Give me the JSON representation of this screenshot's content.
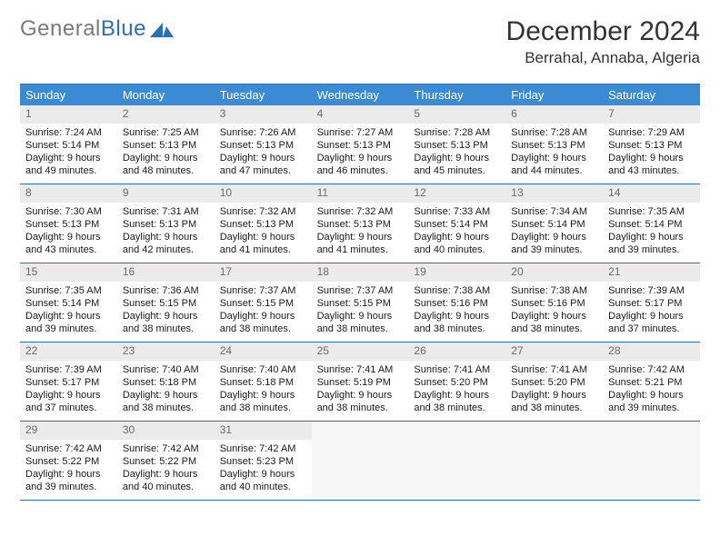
{
  "brand": {
    "part1": "General",
    "part2": "Blue"
  },
  "title": "December 2024",
  "location": "Berrahal, Annaba, Algeria",
  "colors": {
    "header_bg": "#3b8bd4",
    "rule": "#2d6fb5",
    "daynum_bg": "#ebebeb",
    "logo_gray": "#7a7a7a",
    "logo_blue": "#2d6fb5"
  },
  "day_labels": [
    "Sunday",
    "Monday",
    "Tuesday",
    "Wednesday",
    "Thursday",
    "Friday",
    "Saturday"
  ],
  "weeks": [
    [
      {
        "n": "1",
        "sunrise": "7:24 AM",
        "sunset": "5:14 PM",
        "daylight": "9 hours and 49 minutes."
      },
      {
        "n": "2",
        "sunrise": "7:25 AM",
        "sunset": "5:13 PM",
        "daylight": "9 hours and 48 minutes."
      },
      {
        "n": "3",
        "sunrise": "7:26 AM",
        "sunset": "5:13 PM",
        "daylight": "9 hours and 47 minutes."
      },
      {
        "n": "4",
        "sunrise": "7:27 AM",
        "sunset": "5:13 PM",
        "daylight": "9 hours and 46 minutes."
      },
      {
        "n": "5",
        "sunrise": "7:28 AM",
        "sunset": "5:13 PM",
        "daylight": "9 hours and 45 minutes."
      },
      {
        "n": "6",
        "sunrise": "7:28 AM",
        "sunset": "5:13 PM",
        "daylight": "9 hours and 44 minutes."
      },
      {
        "n": "7",
        "sunrise": "7:29 AM",
        "sunset": "5:13 PM",
        "daylight": "9 hours and 43 minutes."
      }
    ],
    [
      {
        "n": "8",
        "sunrise": "7:30 AM",
        "sunset": "5:13 PM",
        "daylight": "9 hours and 43 minutes."
      },
      {
        "n": "9",
        "sunrise": "7:31 AM",
        "sunset": "5:13 PM",
        "daylight": "9 hours and 42 minutes."
      },
      {
        "n": "10",
        "sunrise": "7:32 AM",
        "sunset": "5:13 PM",
        "daylight": "9 hours and 41 minutes."
      },
      {
        "n": "11",
        "sunrise": "7:32 AM",
        "sunset": "5:13 PM",
        "daylight": "9 hours and 41 minutes."
      },
      {
        "n": "12",
        "sunrise": "7:33 AM",
        "sunset": "5:14 PM",
        "daylight": "9 hours and 40 minutes."
      },
      {
        "n": "13",
        "sunrise": "7:34 AM",
        "sunset": "5:14 PM",
        "daylight": "9 hours and 39 minutes."
      },
      {
        "n": "14",
        "sunrise": "7:35 AM",
        "sunset": "5:14 PM",
        "daylight": "9 hours and 39 minutes."
      }
    ],
    [
      {
        "n": "15",
        "sunrise": "7:35 AM",
        "sunset": "5:14 PM",
        "daylight": "9 hours and 39 minutes."
      },
      {
        "n": "16",
        "sunrise": "7:36 AM",
        "sunset": "5:15 PM",
        "daylight": "9 hours and 38 minutes."
      },
      {
        "n": "17",
        "sunrise": "7:37 AM",
        "sunset": "5:15 PM",
        "daylight": "9 hours and 38 minutes."
      },
      {
        "n": "18",
        "sunrise": "7:37 AM",
        "sunset": "5:15 PM",
        "daylight": "9 hours and 38 minutes."
      },
      {
        "n": "19",
        "sunrise": "7:38 AM",
        "sunset": "5:16 PM",
        "daylight": "9 hours and 38 minutes."
      },
      {
        "n": "20",
        "sunrise": "7:38 AM",
        "sunset": "5:16 PM",
        "daylight": "9 hours and 38 minutes."
      },
      {
        "n": "21",
        "sunrise": "7:39 AM",
        "sunset": "5:17 PM",
        "daylight": "9 hours and 37 minutes."
      }
    ],
    [
      {
        "n": "22",
        "sunrise": "7:39 AM",
        "sunset": "5:17 PM",
        "daylight": "9 hours and 37 minutes."
      },
      {
        "n": "23",
        "sunrise": "7:40 AM",
        "sunset": "5:18 PM",
        "daylight": "9 hours and 38 minutes."
      },
      {
        "n": "24",
        "sunrise": "7:40 AM",
        "sunset": "5:18 PM",
        "daylight": "9 hours and 38 minutes."
      },
      {
        "n": "25",
        "sunrise": "7:41 AM",
        "sunset": "5:19 PM",
        "daylight": "9 hours and 38 minutes."
      },
      {
        "n": "26",
        "sunrise": "7:41 AM",
        "sunset": "5:20 PM",
        "daylight": "9 hours and 38 minutes."
      },
      {
        "n": "27",
        "sunrise": "7:41 AM",
        "sunset": "5:20 PM",
        "daylight": "9 hours and 38 minutes."
      },
      {
        "n": "28",
        "sunrise": "7:42 AM",
        "sunset": "5:21 PM",
        "daylight": "9 hours and 39 minutes."
      }
    ],
    [
      {
        "n": "29",
        "sunrise": "7:42 AM",
        "sunset": "5:22 PM",
        "daylight": "9 hours and 39 minutes."
      },
      {
        "n": "30",
        "sunrise": "7:42 AM",
        "sunset": "5:22 PM",
        "daylight": "9 hours and 40 minutes."
      },
      {
        "n": "31",
        "sunrise": "7:42 AM",
        "sunset": "5:23 PM",
        "daylight": "9 hours and 40 minutes."
      },
      null,
      null,
      null,
      null
    ]
  ],
  "labels": {
    "sunrise": "Sunrise: ",
    "sunset": "Sunset: ",
    "daylight": "Daylight: "
  }
}
